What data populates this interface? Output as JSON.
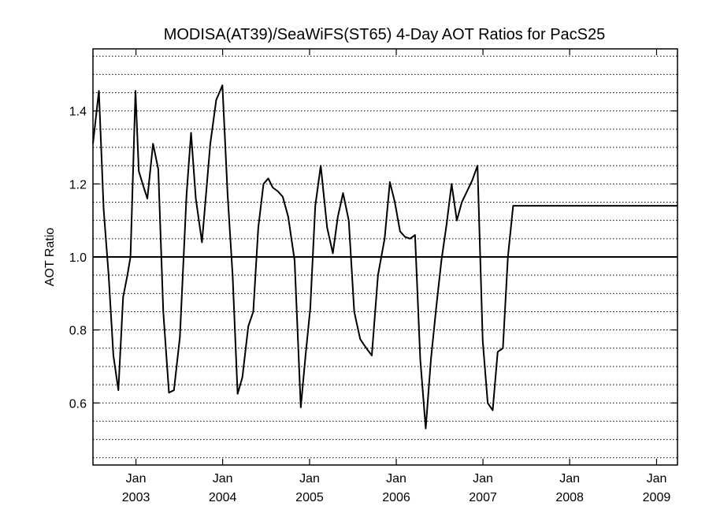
{
  "chart_data": {
    "type": "line",
    "title": "MODISA(AT39)/SeaWiFS(ST65) 4-Day AOT Ratios for PacS25",
    "xlabel": "",
    "ylabel": "AOT Ratio",
    "ylim": [
      0.43,
      1.57
    ],
    "xlim": [
      "2002-07-04",
      "2009-03-30"
    ],
    "yticks": [
      "0.6",
      "0.8",
      "1.0",
      "1.2",
      "1.4"
    ],
    "xticks": [
      {
        "month": "Jan",
        "year": "2003",
        "date": "2003-01-01"
      },
      {
        "month": "Jan",
        "year": "2004",
        "date": "2004-01-01"
      },
      {
        "month": "Jan",
        "year": "2005",
        "date": "2005-01-01"
      },
      {
        "month": "Jan",
        "year": "2006",
        "date": "2006-01-01"
      },
      {
        "month": "Jan",
        "year": "2007",
        "date": "2007-01-01"
      },
      {
        "month": "Jan",
        "year": "2008",
        "date": "2008-01-01"
      },
      {
        "month": "Jan",
        "year": "2009",
        "date": "2009-01-01"
      }
    ],
    "reference_line": 1.0,
    "grid": true,
    "grid_style": "dotted horizontal",
    "line_color": "#000000",
    "x": [
      "2002-07-04",
      "2002-07-29",
      "2002-08-18",
      "2002-09-08",
      "2002-09-28",
      "2002-10-19",
      "2002-11-08",
      "2002-11-26",
      "2002-12-09",
      "2002-12-30",
      "2003-01-13",
      "2003-02-03",
      "2003-02-18",
      "2003-03-14",
      "2003-04-05",
      "2003-04-26",
      "2003-05-20",
      "2003-06-10",
      "2003-07-05",
      "2003-08-02",
      "2003-08-21",
      "2003-09-10",
      "2003-10-06",
      "2003-11-10",
      "2003-12-05",
      "2003-12-31",
      "2004-01-22",
      "2004-02-12",
      "2004-03-04",
      "2004-03-24",
      "2004-04-18",
      "2004-05-09",
      "2004-05-30",
      "2004-06-21",
      "2004-07-11",
      "2004-07-30",
      "2004-08-20",
      "2004-09-10",
      "2004-10-03",
      "2004-10-30",
      "2004-11-25",
      "2004-12-15",
      "2005-01-04",
      "2005-01-25",
      "2005-02-17",
      "2005-03-16",
      "2005-04-09",
      "2005-04-30",
      "2005-05-22",
      "2005-06-15",
      "2005-07-08",
      "2005-08-02",
      "2005-08-28",
      "2005-09-20",
      "2005-10-16",
      "2005-11-13",
      "2005-12-05",
      "2005-12-26",
      "2006-01-17",
      "2006-02-07",
      "2006-02-28",
      "2006-03-21",
      "2006-04-12",
      "2006-05-05",
      "2006-05-27",
      "2006-06-18",
      "2006-07-10",
      "2006-08-01",
      "2006-08-22",
      "2006-09-13",
      "2006-10-04",
      "2006-10-26",
      "2006-11-17",
      "2006-12-09",
      "2006-12-31",
      "2007-01-21",
      "2007-02-11",
      "2007-03-04",
      "2007-03-26",
      "2007-04-16",
      "2007-05-08",
      "2007-05-30",
      "2007-06-20",
      "2007-07-12",
      "2007-08-02",
      "2007-08-24",
      "2007-09-15",
      "2007-10-06",
      "2007-10-28",
      "2007-11-19",
      "2007-12-10",
      "2008-01-01",
      "2008-01-23",
      "2008-02-13",
      "2008-03-06",
      "2008-03-27",
      "2008-04-18",
      "2008-05-10",
      "2008-05-31",
      "2008-06-22",
      "2008-07-14",
      "2008-08-05",
      "2008-08-26",
      "2008-09-17",
      "2008-10-09",
      "2008-10-30",
      "2008-11-21",
      "2008-12-12",
      "2009-01-03",
      "2009-01-25",
      "2009-02-15",
      "2009-03-09",
      "2009-03-30"
    ],
    "values": [
      1.31,
      1.455,
      1.13,
      0.95,
      0.73,
      0.635,
      0.89,
      0.95,
      1.0,
      1.455,
      1.235,
      1.19,
      1.16,
      1.31,
      1.24,
      0.85,
      0.628,
      0.635,
      0.78,
      1.17,
      1.34,
      1.16,
      1.04,
      1.31,
      1.43,
      1.47,
      1.17,
      0.95,
      0.625,
      0.67,
      0.81,
      0.85,
      1.08,
      1.2,
      1.215,
      1.19,
      1.18,
      1.165,
      1.11,
      0.99,
      0.588,
      0.73,
      0.86,
      1.14,
      1.25,
      1.08,
      1.01,
      1.11,
      1.175,
      1.1,
      0.85,
      0.775,
      0.75,
      0.73,
      0.95,
      1.05,
      1.205,
      1.15,
      1.07,
      1.055,
      1.05,
      1.06,
      0.72,
      0.53,
      0.72,
      0.86,
      0.99,
      1.09,
      1.2,
      1.1,
      1.15,
      1.18,
      1.21,
      1.25,
      0.77,
      0.6,
      0.58,
      0.74,
      0.75,
      1.0,
      1.14,
      1.14,
      1.14,
      1.14,
      1.14,
      1.14,
      1.14,
      1.14,
      1.14,
      1.14,
      1.14,
      1.14,
      1.14,
      1.14,
      1.14,
      1.14,
      1.14,
      1.14,
      1.14,
      1.14,
      1.14,
      1.14,
      1.14,
      1.14,
      1.14,
      1.14,
      1.14,
      1.14,
      1.14,
      1.14,
      1.14,
      1.14,
      1.14
    ]
  }
}
